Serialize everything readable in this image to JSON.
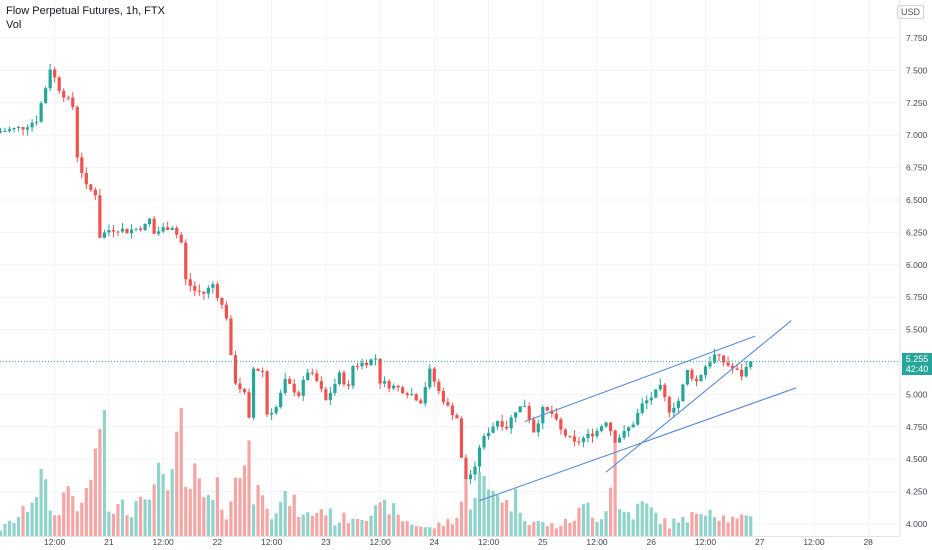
{
  "header": {
    "symbol_line": "Flow Perpetual Futures, 1h, FTX",
    "volume_label": "Vol"
  },
  "currency_button": "USD",
  "last_price": {
    "price": "5.255",
    "countdown": "42:40"
  },
  "colors": {
    "up": "#26a69a",
    "down": "#ef5350",
    "up_volume": "#8fd3cb",
    "down_volume": "#f4a6a5",
    "trendline": "#5b8bd6",
    "price_line": "#26a69a"
  },
  "chart_data": {
    "type": "candlestick",
    "title": "Flow Perpetual Futures, 1h, FTX",
    "ylim": [
      3.98,
      7.95
    ],
    "y_ticks": [
      "7.750",
      "7.500",
      "7.250",
      "7.000",
      "6.750",
      "6.500",
      "6.250",
      "6.000",
      "5.750",
      "5.500",
      "5.250",
      "5.000",
      "4.750",
      "4.500",
      "4.250",
      "4.000"
    ],
    "x_ticks": [
      "12:00",
      "21",
      "12:00",
      "22",
      "12:00",
      "23",
      "12:00",
      "24",
      "12:00",
      "25",
      "12:00",
      "26",
      "12:00",
      "27",
      "12:00",
      "28"
    ],
    "x_tick_hours": [
      12,
      24,
      36,
      48,
      60,
      72,
      84,
      96,
      108,
      120,
      132,
      144,
      156,
      168,
      180,
      192
    ],
    "x_axis": "hours since 20 00:00",
    "legend": "none",
    "series": [
      {
        "key": "close",
        "anchors": [
          [
            0,
            7.03
          ],
          [
            5,
            7.06
          ],
          [
            8,
            7.12
          ],
          [
            10,
            7.37
          ],
          [
            11,
            7.52
          ],
          [
            13,
            7.36
          ],
          [
            16,
            7.22
          ],
          [
            17,
            6.84
          ],
          [
            19,
            6.6
          ],
          [
            21,
            6.55
          ],
          [
            22,
            6.22
          ],
          [
            24,
            6.27
          ],
          [
            26,
            6.28
          ],
          [
            28,
            6.26
          ],
          [
            32,
            6.3
          ],
          [
            33,
            6.35
          ],
          [
            34,
            6.24
          ],
          [
            36,
            6.28
          ],
          [
            38,
            6.3
          ],
          [
            40,
            6.17
          ],
          [
            41,
            5.88
          ],
          [
            43,
            5.8
          ],
          [
            45,
            5.78
          ],
          [
            47,
            5.85
          ],
          [
            50,
            5.6
          ],
          [
            51,
            5.28
          ],
          [
            52,
            5.1
          ],
          [
            54,
            5.0
          ],
          [
            55,
            4.8
          ],
          [
            56,
            5.2
          ],
          [
            58,
            5.18
          ],
          [
            59,
            4.85
          ],
          [
            61,
            4.9
          ],
          [
            63,
            5.1
          ],
          [
            66,
            5.0
          ],
          [
            68,
            5.18
          ],
          [
            70,
            5.1
          ],
          [
            72,
            4.95
          ],
          [
            75,
            5.15
          ],
          [
            77,
            5.05
          ],
          [
            78,
            5.22
          ],
          [
            81,
            5.25
          ],
          [
            83,
            5.28
          ],
          [
            84,
            5.1
          ],
          [
            86,
            5.07
          ],
          [
            88,
            5.05
          ],
          [
            91,
            5.0
          ],
          [
            93,
            4.95
          ],
          [
            95,
            5.18
          ],
          [
            97,
            5.02
          ],
          [
            99,
            4.9
          ],
          [
            101,
            4.82
          ],
          [
            102,
            4.5
          ],
          [
            103,
            4.35
          ],
          [
            105,
            4.42
          ],
          [
            106,
            4.6
          ],
          [
            108,
            4.72
          ],
          [
            110,
            4.8
          ],
          [
            112,
            4.75
          ],
          [
            114,
            4.88
          ],
          [
            116,
            4.92
          ],
          [
            118,
            4.72
          ],
          [
            120,
            4.88
          ],
          [
            122,
            4.85
          ],
          [
            124,
            4.72
          ],
          [
            127,
            4.62
          ],
          [
            130,
            4.68
          ],
          [
            132,
            4.72
          ],
          [
            134,
            4.8
          ],
          [
            136,
            4.65
          ],
          [
            138,
            4.7
          ],
          [
            140,
            4.78
          ],
          [
            142,
            4.92
          ],
          [
            144,
            4.98
          ],
          [
            146,
            5.05
          ],
          [
            148,
            4.88
          ],
          [
            150,
            4.95
          ],
          [
            152,
            5.18
          ],
          [
            154,
            5.1
          ],
          [
            156,
            5.22
          ],
          [
            158,
            5.3
          ],
          [
            160,
            5.25
          ],
          [
            162,
            5.2
          ],
          [
            164,
            5.15
          ],
          [
            166,
            5.255
          ]
        ]
      },
      {
        "key": "volume",
        "anchors": [
          [
            0,
            5
          ],
          [
            5,
            18
          ],
          [
            9,
            45
          ],
          [
            12,
            15
          ],
          [
            15,
            40
          ],
          [
            18,
            20
          ],
          [
            20,
            50
          ],
          [
            21,
            60
          ],
          [
            22,
            95
          ],
          [
            23,
            75
          ],
          [
            24,
            20
          ],
          [
            28,
            25
          ],
          [
            29,
            20
          ],
          [
            32,
            45
          ],
          [
            34,
            35
          ],
          [
            36,
            55
          ],
          [
            38,
            50
          ],
          [
            40,
            80
          ],
          [
            41,
            35
          ],
          [
            43,
            45
          ],
          [
            45,
            30
          ],
          [
            47,
            25
          ],
          [
            48,
            35
          ],
          [
            50,
            20
          ],
          [
            54,
            60
          ],
          [
            55,
            100
          ],
          [
            56,
            25
          ],
          [
            58,
            45
          ],
          [
            60,
            20
          ],
          [
            64,
            30
          ],
          [
            67,
            15
          ],
          [
            70,
            20
          ],
          [
            72,
            22
          ],
          [
            74,
            12
          ],
          [
            80,
            18
          ],
          [
            84,
            20
          ],
          [
            86,
            25
          ],
          [
            88,
            15
          ],
          [
            91,
            10
          ],
          [
            95,
            6
          ],
          [
            98,
            10
          ],
          [
            101,
            15
          ],
          [
            103,
            40
          ],
          [
            104,
            30
          ],
          [
            106,
            45
          ],
          [
            108,
            35
          ],
          [
            110,
            40
          ],
          [
            112,
            25
          ],
          [
            114,
            30
          ],
          [
            117,
            12
          ],
          [
            120,
            10
          ],
          [
            123,
            8
          ],
          [
            126,
            12
          ],
          [
            130,
            25
          ],
          [
            132,
            15
          ],
          [
            134,
            20
          ],
          [
            136,
            80
          ],
          [
            137,
            20
          ],
          [
            140,
            18
          ],
          [
            142,
            25
          ],
          [
            144,
            20
          ],
          [
            148,
            8
          ],
          [
            150,
            15
          ],
          [
            152,
            10
          ],
          [
            154,
            20
          ],
          [
            156,
            25
          ],
          [
            158,
            20
          ],
          [
            160,
            15
          ],
          [
            163,
            12
          ],
          [
            166,
            15
          ]
        ]
      }
    ],
    "trendlines": [
      {
        "name": "upper channel",
        "points": [
          [
            116,
            4.79
          ],
          [
            167,
            5.45
          ]
        ]
      },
      {
        "name": "lower channel",
        "points": [
          [
            106,
            4.18
          ],
          [
            176,
            5.05
          ]
        ]
      },
      {
        "name": "rising support",
        "points": [
          [
            134,
            4.4
          ],
          [
            175,
            5.57
          ]
        ]
      }
    ]
  }
}
